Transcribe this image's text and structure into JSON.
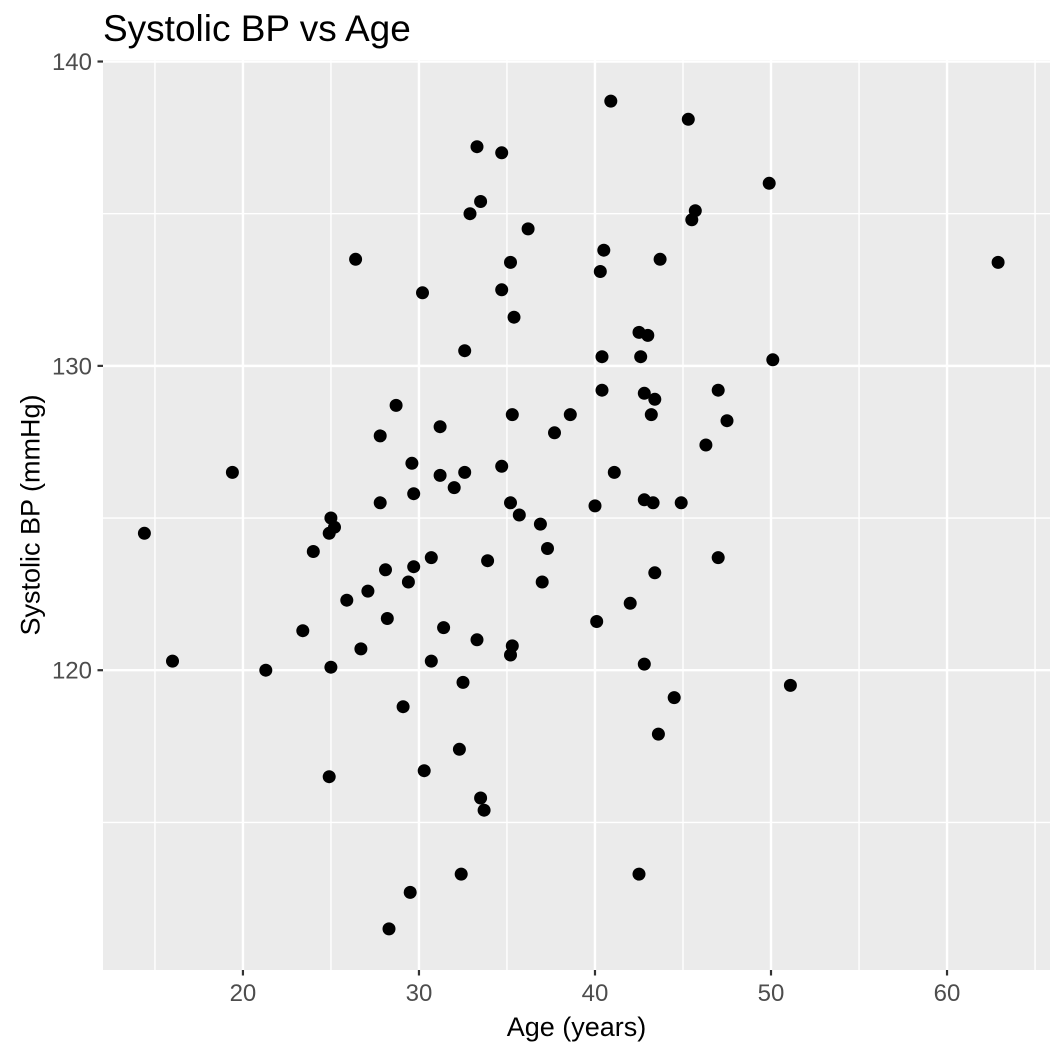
{
  "chart_data": {
    "type": "scatter",
    "title": "Systolic BP vs Age",
    "xlabel": "Age (years)",
    "ylabel": "Systolic BP (mmHg)",
    "xlim": [
      12.05,
      65.85
    ],
    "ylim": [
      110.15,
      140.05
    ],
    "x_ticks": [
      20,
      30,
      40,
      50,
      60
    ],
    "y_ticks": [
      120,
      130,
      140
    ],
    "x_minor_ticks": [
      15,
      25,
      35,
      45,
      55,
      65
    ],
    "y_minor_ticks": [
      115,
      125,
      135
    ],
    "grid": true,
    "legend": "none",
    "style": {
      "panel_bg": "#EBEBEB",
      "grid_color": "#FFFFFF",
      "point_color": "#000000",
      "tick_label_color": "#4D4D4D",
      "tick_mark_color": "#333333",
      "point_radius": 6.5
    },
    "points": [
      [
        14.4,
        124.5
      ],
      [
        16.0,
        120.3
      ],
      [
        19.4,
        126.5
      ],
      [
        21.3,
        120.0
      ],
      [
        23.4,
        121.3
      ],
      [
        24.0,
        123.9
      ],
      [
        24.9,
        124.5
      ],
      [
        24.9,
        116.5
      ],
      [
        25.0,
        125.0
      ],
      [
        25.0,
        120.1
      ],
      [
        25.2,
        124.7
      ],
      [
        25.9,
        122.3
      ],
      [
        26.4,
        133.5
      ],
      [
        26.7,
        120.7
      ],
      [
        27.1,
        122.6
      ],
      [
        27.8,
        127.7
      ],
      [
        27.8,
        125.5
      ],
      [
        28.1,
        123.3
      ],
      [
        28.2,
        121.7
      ],
      [
        28.3,
        111.5
      ],
      [
        28.7,
        128.7
      ],
      [
        29.1,
        118.8
      ],
      [
        29.4,
        122.9
      ],
      [
        29.5,
        112.7
      ],
      [
        29.6,
        126.8
      ],
      [
        29.7,
        125.8
      ],
      [
        29.7,
        123.4
      ],
      [
        30.2,
        132.4
      ],
      [
        30.3,
        116.7
      ],
      [
        30.7,
        123.7
      ],
      [
        30.7,
        120.3
      ],
      [
        31.2,
        128.0
      ],
      [
        31.2,
        126.4
      ],
      [
        31.4,
        121.4
      ],
      [
        32.0,
        126.0
      ],
      [
        32.3,
        117.4
      ],
      [
        32.4,
        113.3
      ],
      [
        32.5,
        119.6
      ],
      [
        32.6,
        130.5
      ],
      [
        32.6,
        126.5
      ],
      [
        32.9,
        135.0
      ],
      [
        33.3,
        137.2
      ],
      [
        33.3,
        121.0
      ],
      [
        33.5,
        135.4
      ],
      [
        33.5,
        115.8
      ],
      [
        33.7,
        115.4
      ],
      [
        33.9,
        123.6
      ],
      [
        34.7,
        137.0
      ],
      [
        34.7,
        132.5
      ],
      [
        34.7,
        126.7
      ],
      [
        35.2,
        133.4
      ],
      [
        35.2,
        125.5
      ],
      [
        35.2,
        120.5
      ],
      [
        35.3,
        128.4
      ],
      [
        35.3,
        120.8
      ],
      [
        35.4,
        131.6
      ],
      [
        35.7,
        125.1
      ],
      [
        36.2,
        134.5
      ],
      [
        36.9,
        124.8
      ],
      [
        37.0,
        122.9
      ],
      [
        37.3,
        124.0
      ],
      [
        37.7,
        127.8
      ],
      [
        38.6,
        128.4
      ],
      [
        40.0,
        125.4
      ],
      [
        40.1,
        121.6
      ],
      [
        40.3,
        133.1
      ],
      [
        40.4,
        130.3
      ],
      [
        40.4,
        129.2
      ],
      [
        40.5,
        133.8
      ],
      [
        40.9,
        138.7
      ],
      [
        41.1,
        126.5
      ],
      [
        42.0,
        122.2
      ],
      [
        42.5,
        131.1
      ],
      [
        42.5,
        113.3
      ],
      [
        42.6,
        130.3
      ],
      [
        42.8,
        129.1
      ],
      [
        42.8,
        125.6
      ],
      [
        42.8,
        120.2
      ],
      [
        43.0,
        131.0
      ],
      [
        43.2,
        128.4
      ],
      [
        43.3,
        125.5
      ],
      [
        43.4,
        128.9
      ],
      [
        43.4,
        123.2
      ],
      [
        43.6,
        117.9
      ],
      [
        43.7,
        133.5
      ],
      [
        44.5,
        119.1
      ],
      [
        44.9,
        125.5
      ],
      [
        45.3,
        138.1
      ],
      [
        45.5,
        134.8
      ],
      [
        45.7,
        135.1
      ],
      [
        46.3,
        127.4
      ],
      [
        47.0,
        129.2
      ],
      [
        47.0,
        123.7
      ],
      [
        47.5,
        128.2
      ],
      [
        49.9,
        136.0
      ],
      [
        50.1,
        130.2
      ],
      [
        51.1,
        119.5
      ],
      [
        62.9,
        133.4
      ]
    ]
  }
}
